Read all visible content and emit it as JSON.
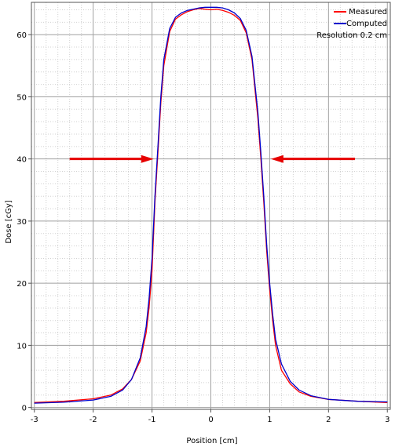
{
  "chart_data": {
    "type": "line",
    "xlabel": "Position [cm]",
    "ylabel": "Dose [cGy]",
    "xlim": [
      -3.05,
      3.05
    ],
    "ylim": [
      -0.3,
      65.2
    ],
    "xticks": [
      -3,
      -2,
      -1,
      0,
      1,
      2,
      3
    ],
    "yticks": [
      0,
      10,
      20,
      30,
      40,
      50,
      60
    ],
    "grid": true,
    "legend_position": "top-right",
    "legend_note": "Resolution 0.2 cm",
    "series": [
      {
        "name": "Measured",
        "color": "#ff0000",
        "x": [
          -3.0,
          -2.5,
          -2.0,
          -1.7,
          -1.5,
          -1.35,
          -1.2,
          -1.1,
          -1.05,
          -1.0,
          -0.95,
          -0.9,
          -0.85,
          -0.8,
          -0.7,
          -0.6,
          -0.5,
          -0.4,
          -0.3,
          -0.2,
          -0.1,
          0.0,
          0.1,
          0.2,
          0.3,
          0.4,
          0.5,
          0.6,
          0.7,
          0.8,
          0.85,
          0.9,
          0.95,
          1.0,
          1.05,
          1.1,
          1.2,
          1.35,
          1.5,
          1.7,
          2.0,
          2.5,
          3.0
        ],
        "y": [
          0.8,
          1.0,
          1.4,
          2.0,
          3.0,
          4.5,
          7.5,
          12.0,
          16.0,
          22.0,
          33.0,
          41.0,
          49.0,
          55.0,
          60.5,
          62.5,
          63.2,
          63.7,
          64.0,
          64.2,
          64.1,
          64.0,
          64.1,
          63.9,
          63.6,
          63.1,
          62.3,
          60.3,
          56.0,
          46.5,
          40.0,
          33.0,
          25.0,
          19.0,
          14.0,
          10.0,
          6.0,
          3.8,
          2.5,
          1.8,
          1.3,
          1.0,
          0.8
        ]
      },
      {
        "name": "Computed",
        "color": "#0000cc",
        "x": [
          -3.0,
          -2.5,
          -2.0,
          -1.7,
          -1.5,
          -1.35,
          -1.2,
          -1.1,
          -1.05,
          -1.0,
          -0.95,
          -0.9,
          -0.85,
          -0.8,
          -0.7,
          -0.6,
          -0.5,
          -0.4,
          -0.3,
          -0.2,
          -0.1,
          0.0,
          0.1,
          0.2,
          0.3,
          0.4,
          0.5,
          0.6,
          0.7,
          0.8,
          0.85,
          0.9,
          0.95,
          1.0,
          1.05,
          1.1,
          1.2,
          1.35,
          1.5,
          1.7,
          2.0,
          2.5,
          3.0
        ],
        "y": [
          0.7,
          0.85,
          1.2,
          1.8,
          2.8,
          4.5,
          8.0,
          13.0,
          17.5,
          24.0,
          34.0,
          42.0,
          50.0,
          56.0,
          61.0,
          62.8,
          63.5,
          63.9,
          64.1,
          64.3,
          64.4,
          64.4,
          64.4,
          64.3,
          64.0,
          63.5,
          62.6,
          60.7,
          56.5,
          47.5,
          41.0,
          34.0,
          26.0,
          20.0,
          15.0,
          11.0,
          7.0,
          4.2,
          2.8,
          1.9,
          1.3,
          1.0,
          0.9
        ]
      }
    ],
    "annotations": [
      {
        "type": "arrow",
        "from": [
          -2.4,
          40
        ],
        "to": [
          -0.97,
          40
        ],
        "color": "#e60000"
      },
      {
        "type": "arrow",
        "from": [
          2.45,
          40
        ],
        "to": [
          1.02,
          40
        ],
        "color": "#e60000"
      }
    ]
  }
}
